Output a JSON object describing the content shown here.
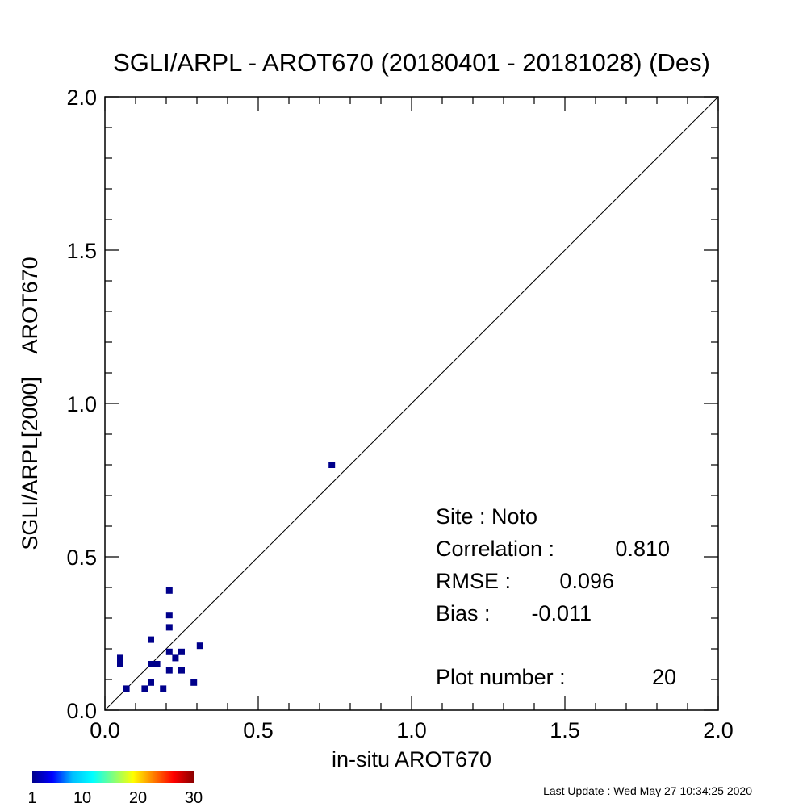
{
  "chart_data": {
    "type": "scatter",
    "title": "SGLI/ARPL - AROT670 (20180401 - 20181028) (Des)",
    "xlabel": "in-situ AROT670",
    "ylabel": "SGLI/ARPL[2000]    AROT670",
    "xlim": [
      0.0,
      2.0
    ],
    "ylim": [
      0.0,
      2.0
    ],
    "x_ticks": [
      "0.0",
      "0.5",
      "1.0",
      "1.5",
      "2.0"
    ],
    "y_ticks": [
      "0.0",
      "0.5",
      "1.0",
      "1.5",
      "2.0"
    ],
    "one_to_one_line": true,
    "point_color": "#00008b",
    "points": [
      {
        "x": 0.05,
        "y": 0.17
      },
      {
        "x": 0.05,
        "y": 0.15
      },
      {
        "x": 0.07,
        "y": 0.07
      },
      {
        "x": 0.13,
        "y": 0.07
      },
      {
        "x": 0.15,
        "y": 0.23
      },
      {
        "x": 0.15,
        "y": 0.15
      },
      {
        "x": 0.15,
        "y": 0.09
      },
      {
        "x": 0.17,
        "y": 0.15
      },
      {
        "x": 0.19,
        "y": 0.07
      },
      {
        "x": 0.21,
        "y": 0.39
      },
      {
        "x": 0.21,
        "y": 0.31
      },
      {
        "x": 0.21,
        "y": 0.27
      },
      {
        "x": 0.21,
        "y": 0.19
      },
      {
        "x": 0.21,
        "y": 0.13
      },
      {
        "x": 0.23,
        "y": 0.17
      },
      {
        "x": 0.25,
        "y": 0.19
      },
      {
        "x": 0.25,
        "y": 0.13
      },
      {
        "x": 0.29,
        "y": 0.09
      },
      {
        "x": 0.31,
        "y": 0.21
      },
      {
        "x": 0.74,
        "y": 0.8
      }
    ],
    "stats": {
      "site": "Site : Noto",
      "correlation_label": "Correlation :",
      "correlation": "0.810",
      "rmse_label": "RMSE :",
      "rmse": "0.096",
      "bias_label": "Bias :",
      "bias": "-0.011",
      "plot_number_label": "Plot number :",
      "plot_number": "20"
    },
    "colorbar": {
      "ticks": [
        "1",
        "10",
        "20",
        "30"
      ],
      "colors": [
        "#00008b",
        "#0000ff",
        "#00bfff",
        "#00ffff",
        "#7fff7f",
        "#ffff00",
        "#ff7f00",
        "#ff0000",
        "#8b0000"
      ]
    }
  },
  "last_update": "Last Update : Wed May 27 10:34:25 2020"
}
